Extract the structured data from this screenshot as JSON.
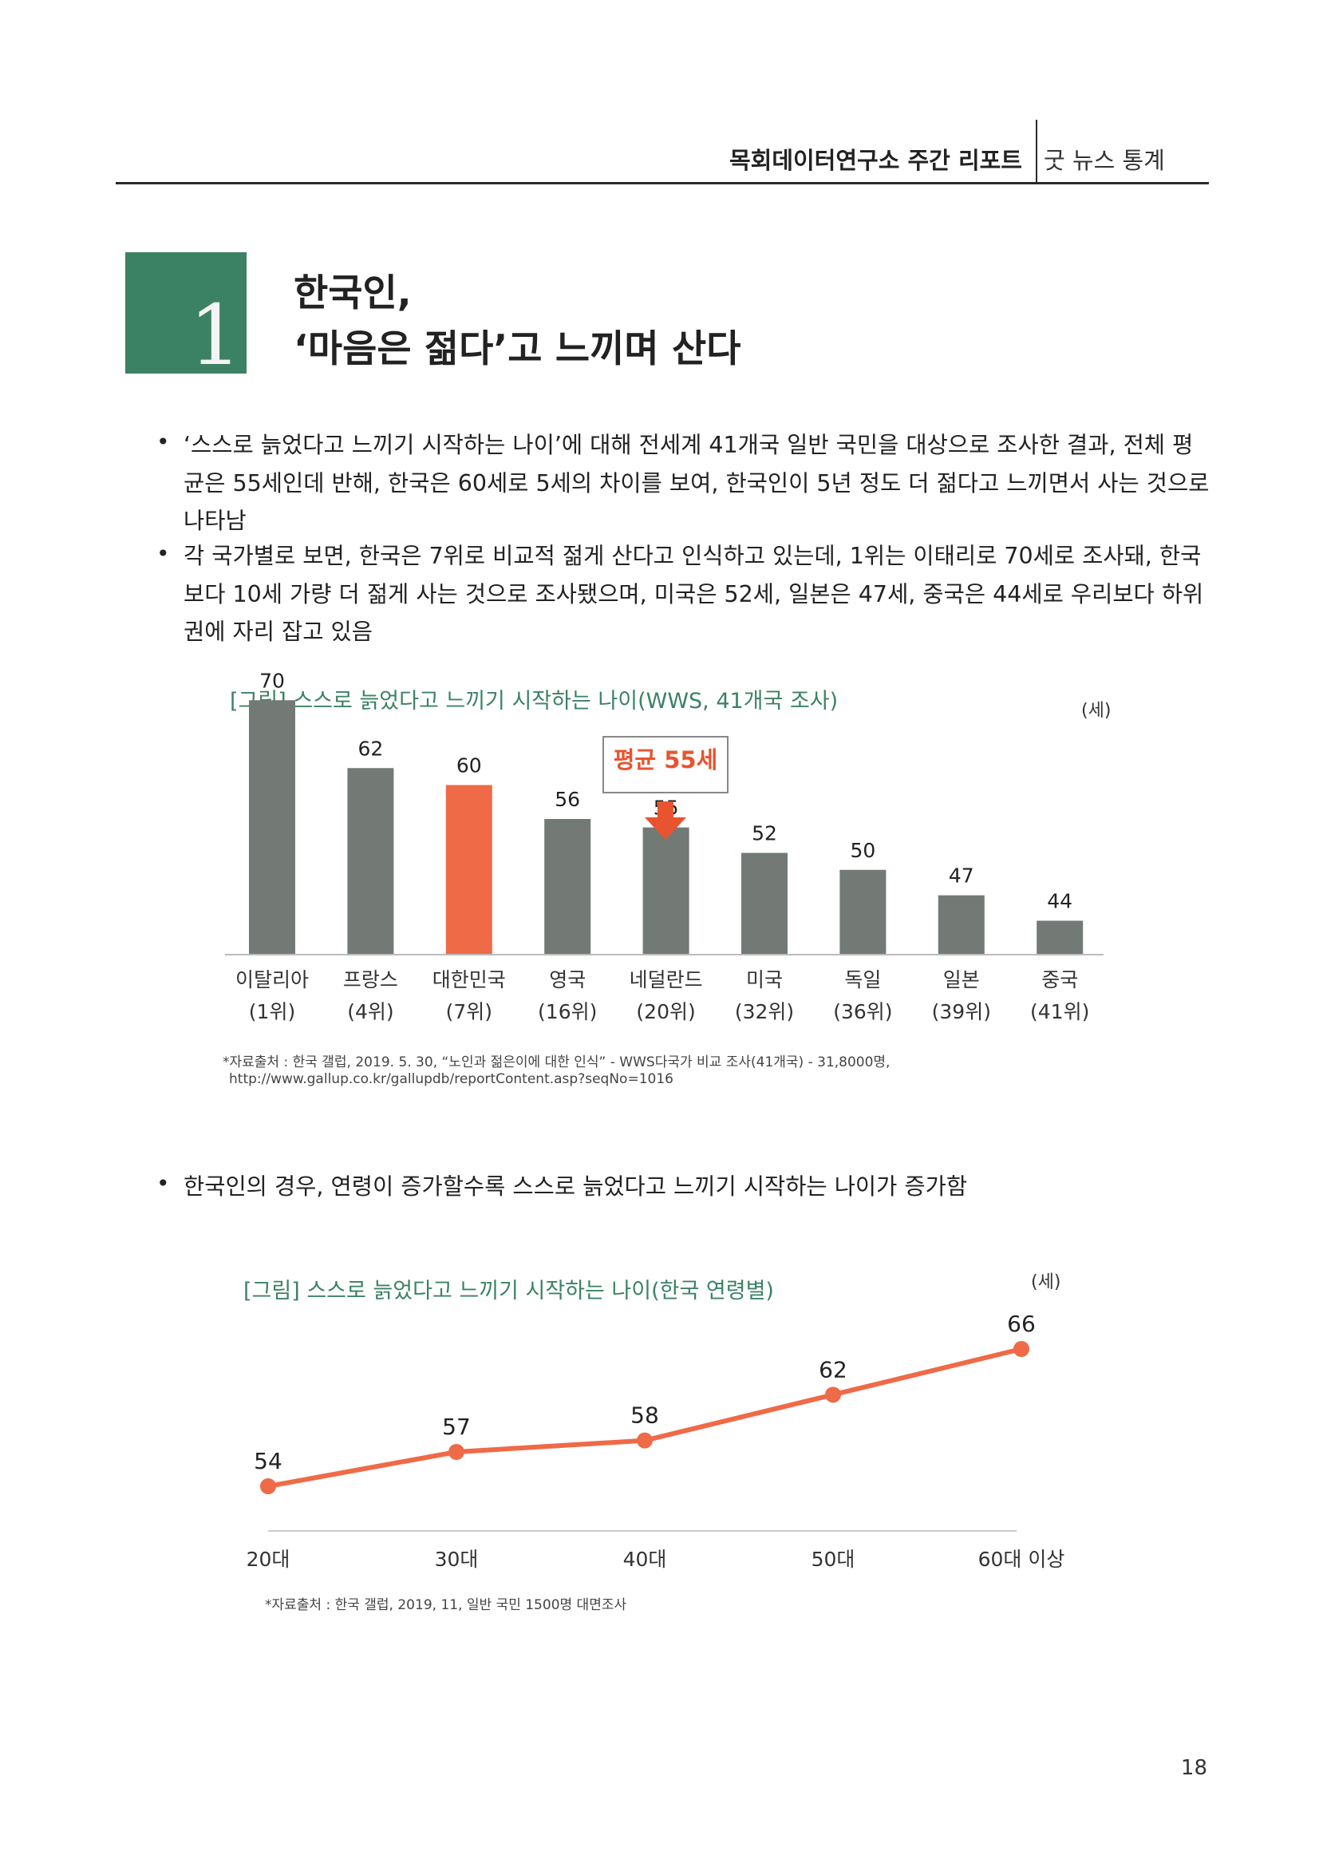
{
  "header": {
    "report": "목회데이터연구소 주간 리포트",
    "section": "굿 뉴스 통계"
  },
  "section_number": "1",
  "title": {
    "line1": "한국인,",
    "line2": "‘마음은 젊다’고 느끼며 산다"
  },
  "bullets": [
    {
      "lines": [
        "‘스스로 늙었다고 느끼기 시작하는 나이’에 대해 전세계 41개국 일반 국민을 대상으로 조사한 결과, 전체 평",
        "균은 55세인데 반해, 한국은 60세로 5세의 차이를 보여, 한국인이 5년 정도 더 젊다고 느끼면서 사는 것으로",
        "나타남"
      ]
    },
    {
      "lines": [
        "각 국가별로 보면, 한국은 7위로 비교적 젊게 산다고 인식하고 있는데, 1위는 이태리로 70세로 조사돼, 한국",
        "보다 10세 가량 더 젊게 사는 것으로 조사됐으며, 미국은 52세, 일본은 47세, 중국은 44세로 우리보다 하위",
        "권에 자리 잡고 있음"
      ]
    },
    {
      "lines": [
        "한국인의 경우, 연령이 증가할수록 스스로 늙었다고 느끼기 시작하는 나이가 증가함"
      ]
    }
  ],
  "chart_data": [
    {
      "type": "bar",
      "title": "[그림] 스스로 늙었다고 느끼기 시작하는 나이(WWS, 41개국 조사)",
      "unit": "(세)",
      "categories": [
        "이탈리아",
        "프랑스",
        "대한민국",
        "영국",
        "네덜란드",
        "미국",
        "독일",
        "일본",
        "중국"
      ],
      "ranks": [
        "(1위)",
        "(4위)",
        "(7위)",
        "(16위)",
        "(20위)",
        "(32위)",
        "(36위)",
        "(39위)",
        "(41위)"
      ],
      "values": [
        70,
        62,
        60,
        56,
        55,
        52,
        50,
        47,
        44
      ],
      "highlight_category": "대한민국",
      "annotation": "평균 55세",
      "annotation_target": "네덜란드",
      "colors": {
        "bar": "#737a76",
        "highlight": "#ef6a47",
        "annotation": "#e8542f"
      },
      "ylim": [
        40,
        72
      ],
      "source": [
        "*자료출처 : 한국 갤럽, 2019. 5. 30, “노인과 젊은이에 대한 인식” - WWS다국가 비교 조사(41개국) - 31,8000명,",
        "http://www.gallup.co.kr/gallupdb/reportContent.asp?seqNo=1016"
      ]
    },
    {
      "type": "line",
      "title": "[그림] 스스로 늙었다고 느끼기 시작하는 나이(한국 연령별)",
      "unit": "(세)",
      "categories": [
        "20대",
        "30대",
        "40대",
        "50대",
        "60대 이상"
      ],
      "values": [
        54,
        57,
        58,
        62,
        66
      ],
      "colors": {
        "line": "#ef6a47"
      },
      "ylim": [
        50,
        68
      ],
      "source": [
        "*자료출처 : 한국 갤럽, 2019, 11, 일반 국민 1500명 대면조사"
      ]
    }
  ],
  "page_number": "18"
}
